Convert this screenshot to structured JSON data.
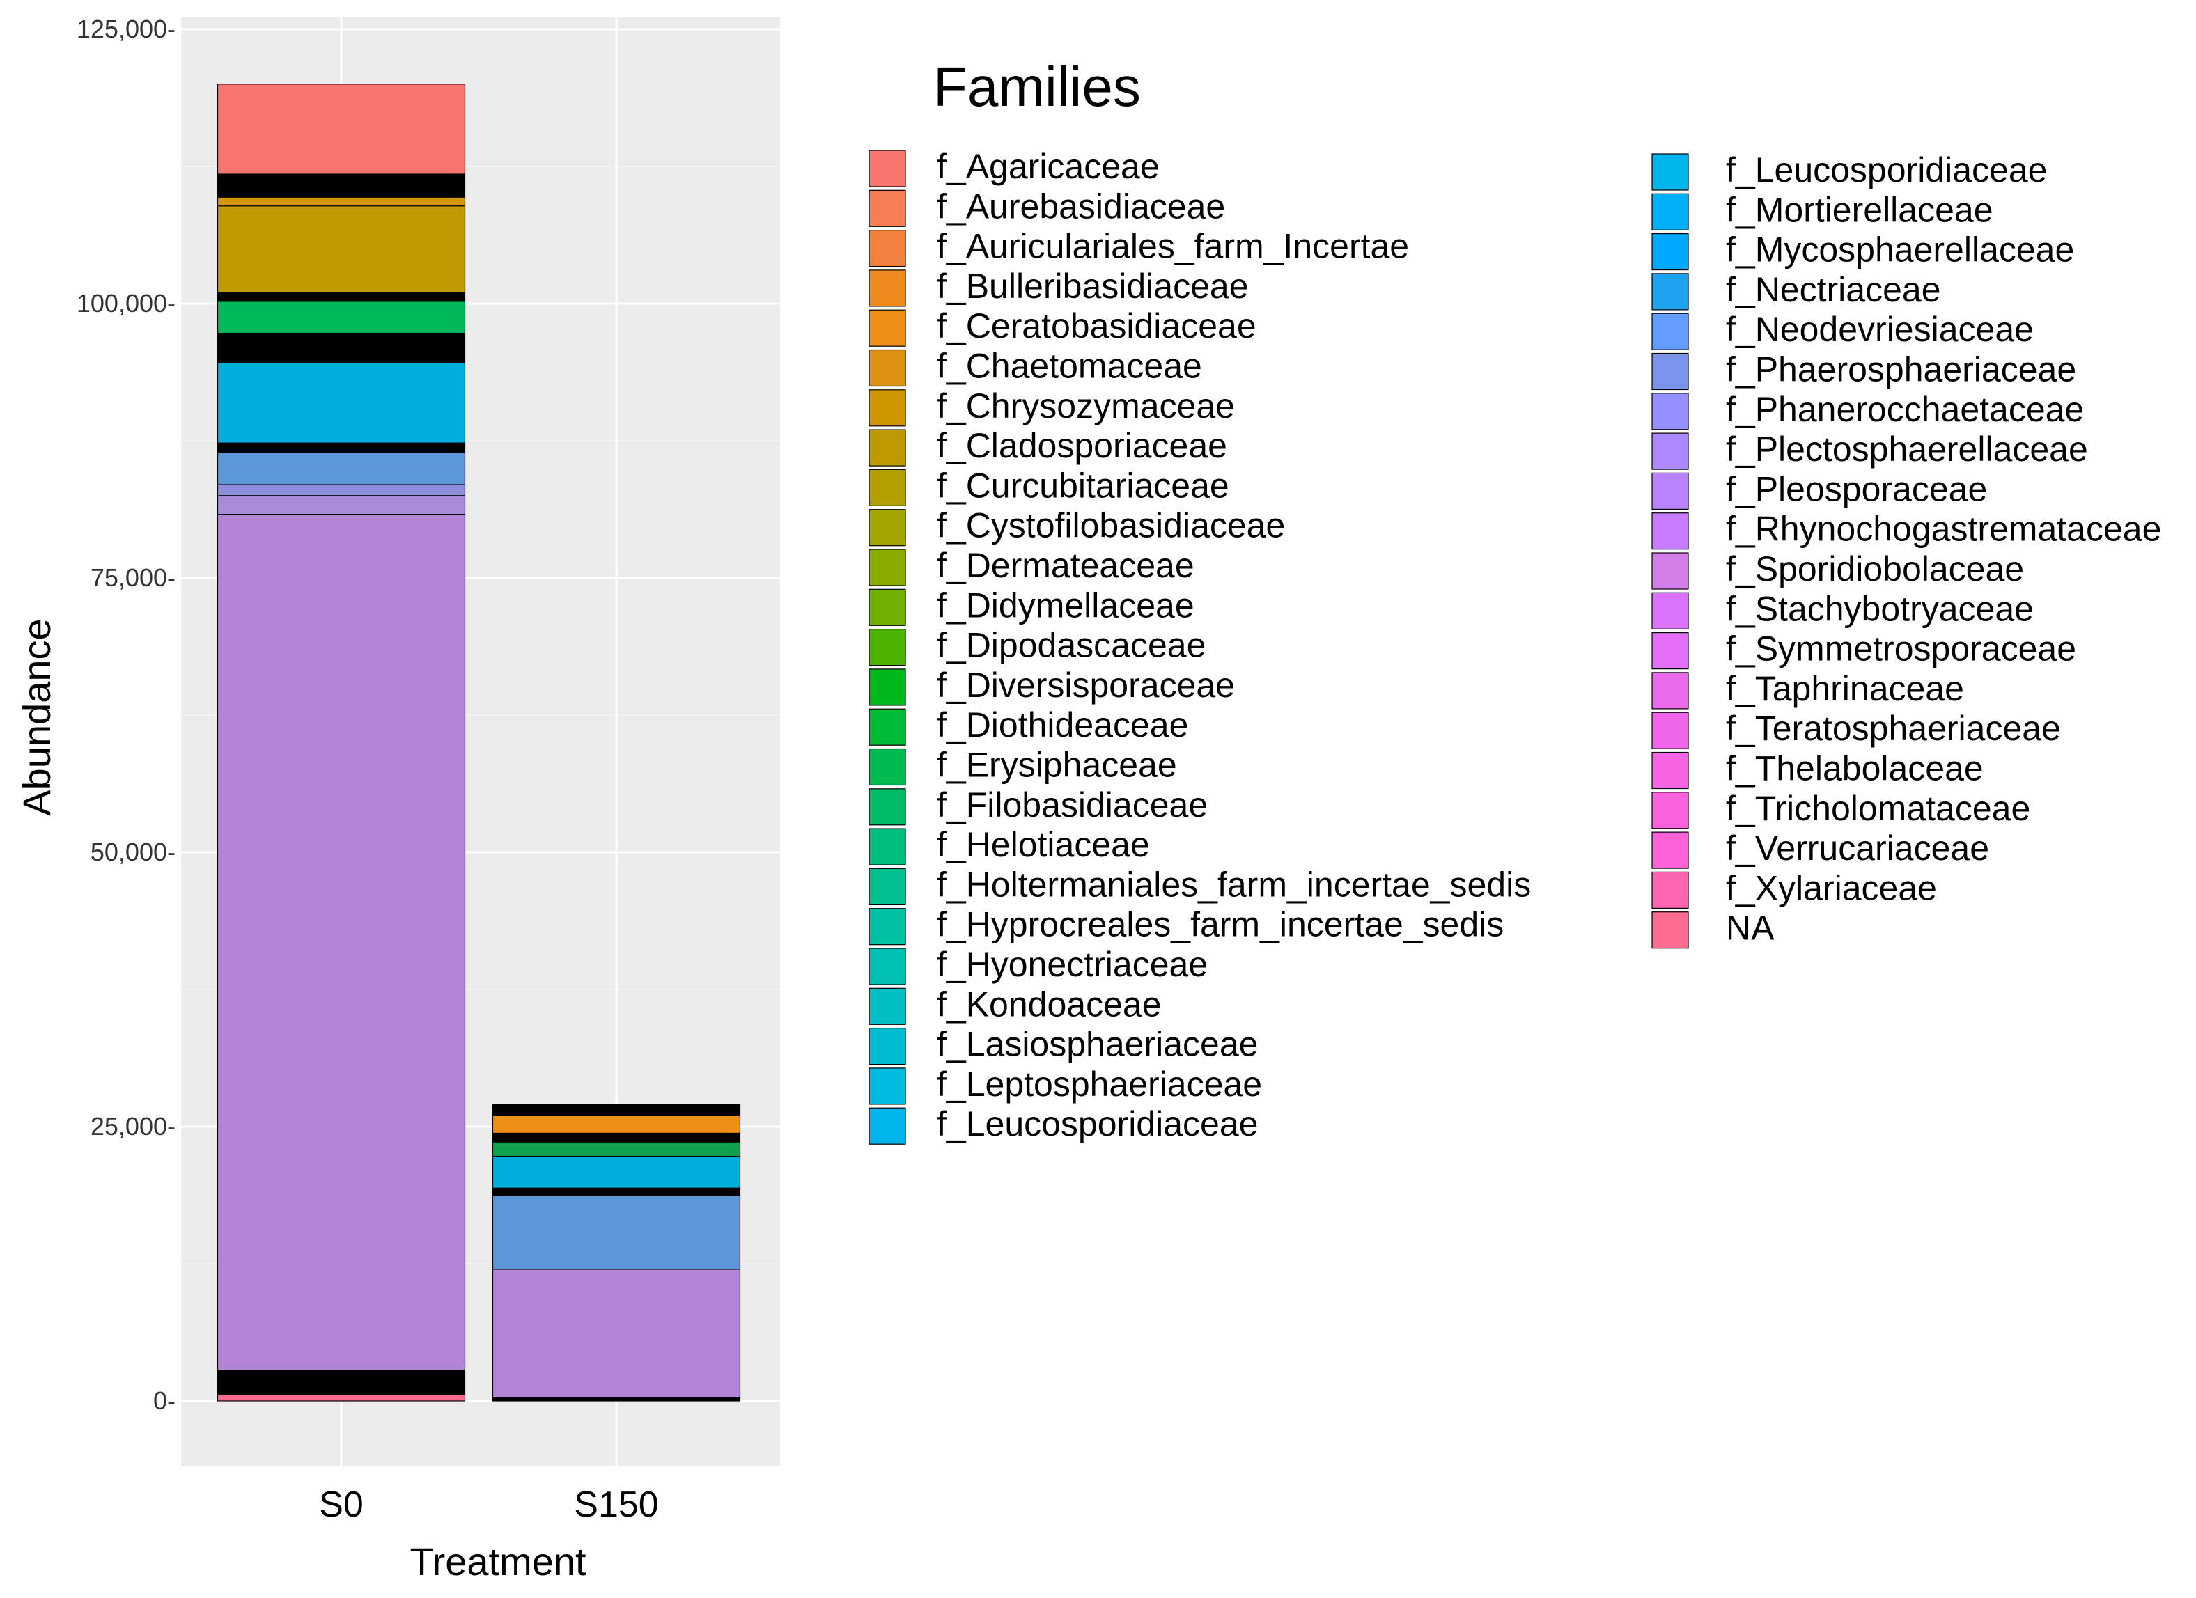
{
  "chart_data": {
    "type": "bar",
    "stacked": true,
    "title": "",
    "xlabel": "Treatment",
    "ylabel": "Abundance",
    "ylim": [
      -6500,
      125000
    ],
    "yticks": [
      0,
      25000,
      50000,
      75000,
      100000,
      125000
    ],
    "ytick_labels": [
      "0-",
      "25,000-",
      "50,000-",
      "75,000-",
      "100,000-",
      "125,000-"
    ],
    "categories": [
      "S0",
      "S150"
    ],
    "totals": [
      120000,
      27000
    ],
    "legend_title": "Families",
    "legend_position": "right",
    "families": [
      {
        "name": "f_Agaricaceae",
        "color": "#F8766D"
      },
      {
        "name": "f_Aurebasidiaceae",
        "color": "#F47E55"
      },
      {
        "name": "f_Auriculariales_farm_Incertae",
        "color": "#F0823E"
      },
      {
        "name": "f_Bulleribasidiaceae",
        "color": "#EF8B1E"
      },
      {
        "name": "f_Ceratobasidiaceae",
        "color": "#EE9018"
      },
      {
        "name": "f_Chaetomaceae",
        "color": "#DC9312"
      },
      {
        "name": "f_Chrysozymaceae",
        "color": "#CD9600"
      },
      {
        "name": "f_Cladosporiaceae",
        "color": "#BE9A00"
      },
      {
        "name": "f_Curcubitariaceae",
        "color": "#B3A000"
      },
      {
        "name": "f_Cystofilobasidiaceae",
        "color": "#A3A500"
      },
      {
        "name": "f_Dermateaceae",
        "color": "#8CAB00"
      },
      {
        "name": "f_Didymellaceae",
        "color": "#72B000"
      },
      {
        "name": "f_Dipodascaceae",
        "color": "#4BB400"
      },
      {
        "name": "f_Diversisporaceae",
        "color": "#00B81A"
      },
      {
        "name": "f_Diothideaceae",
        "color": "#00BA38"
      },
      {
        "name": "f_Erysiphaceae",
        "color": "#00BC4F"
      },
      {
        "name": "f_Filobasidiaceae",
        "color": "#00BE67"
      },
      {
        "name": "f_Helotiaceae",
        "color": "#00BF7D"
      },
      {
        "name": "f_Holtermaniales_farm_incertae_sedis",
        "color": "#00C08E"
      },
      {
        "name": "f_Hyprocreales_farm_incertae_sedis",
        "color": "#00C1A3"
      },
      {
        "name": "f_Hyonectriaceae",
        "color": "#00C0B2"
      },
      {
        "name": "f_Kondoaceae",
        "color": "#00BFC4"
      },
      {
        "name": "f_Lasiosphaeriaceae",
        "color": "#00BCD3"
      },
      {
        "name": "f_Leptosphaeriaceae",
        "color": "#00BAE0"
      },
      {
        "name": "f_Leucosporidiaceae",
        "color": "#00B5EC"
      },
      {
        "name": "f_Mortierellaceae",
        "color": "#00B0F6"
      },
      {
        "name": "f_Mycosphaerellaceae",
        "color": "#00A9FF"
      },
      {
        "name": "f_Nectriaceae",
        "color": "#1EA2F0"
      },
      {
        "name": "f_Neodevriesiaceae",
        "color": "#619CFF"
      },
      {
        "name": "f_Phaerosphaeriaceae",
        "color": "#7B93E8"
      },
      {
        "name": "f_Phanerocchaetaceae",
        "color": "#9590FF"
      },
      {
        "name": "f_Plectosphaerellaceae",
        "color": "#AC88FF"
      },
      {
        "name": "f_Pleosporaceae",
        "color": "#B983FF"
      },
      {
        "name": "f_Rhynochogastremataceae",
        "color": "#C77CFF"
      },
      {
        "name": "f_Sporidiobolaceae",
        "color": "#D37EE8"
      },
      {
        "name": "f_Stachybotryaceae",
        "color": "#DB72FB"
      },
      {
        "name": "f_Symmetrosporaceae",
        "color": "#E36EF6"
      },
      {
        "name": "f_Taphrinaceae",
        "color": "#EA6AE9"
      },
      {
        "name": "f_Teratosphaeriaceae",
        "color": "#F066EA"
      },
      {
        "name": "f_Thelabolaceae",
        "color": "#F564E3"
      },
      {
        "name": "f_Tricholomataceae",
        "color": "#F962DD"
      },
      {
        "name": "f_Verrucariaceae",
        "color": "#FC61D5"
      },
      {
        "name": "f_Xylariaceae",
        "color": "#FF64B0"
      },
      {
        "name": "NA",
        "color": "#FF6C91"
      }
    ],
    "legend_columns": [
      [
        "f_Agaricaceae",
        "f_Aurebasidiaceae",
        "f_Auriculariales_farm_Incertae",
        "f_Bulleribasidiaceae",
        "f_Ceratobasidiaceae",
        "f_Chaetomaceae",
        "f_Chrysozymaceae",
        "f_Cladosporiaceae",
        "f_Curcubitariaceae",
        "f_Cystofilobasidiaceae",
        "f_Dermateaceae",
        "f_Didymellaceae",
        "f_Dipodascaceae",
        "f_Diversisporaceae",
        "f_Diothideaceae",
        "f_Erysiphaceae",
        "f_Filobasidiaceae",
        "f_Helotiaceae",
        "f_Holtermaniales_farm_incertae_sedis",
        "f_Hyprocreales_farm_incertae_sedis",
        "f_Hyonectriaceae",
        "f_Kondoaceae",
        "f_Lasiosphaeriaceae",
        "f_Leptosphaeriaceae",
        "f_Leucosporidiaceae"
      ],
      [
        "f_Leucosporidiaceae",
        "f_Mortierellaceae",
        "f_Mycosphaerellaceae",
        "f_Nectriaceae",
        "f_Neodevriesiaceae",
        "f_Phaerosphaeriaceae",
        "f_Phanerocchaetaceae",
        "f_Plectosphaerellaceae",
        "f_Pleosporaceae",
        "f_Rhynochogastremataceae",
        "f_Sporidiobolaceae",
        "f_Stachybotryaceae",
        "f_Symmetrosporaceae",
        "f_Taphrinaceae",
        "f_Teratosphaeriaceae",
        "f_Thelabolaceae",
        "f_Tricholomataceae",
        "f_Verrucariaceae",
        "f_Xylariaceae",
        "NA"
      ]
    ],
    "series": [
      {
        "category": "S0",
        "segments": [
          {
            "family": "NA",
            "start": 0,
            "end": 600,
            "color": "#FF6C91"
          },
          {
            "family": "",
            "start": 600,
            "end": 2800,
            "color": "#000000"
          },
          {
            "family": "f_Pleosporaceae",
            "start": 2800,
            "end": 80800,
            "color": "#B383D9"
          },
          {
            "family": "f_Plectosphaerellaceae",
            "start": 80800,
            "end": 82500,
            "color": "#A98BDB"
          },
          {
            "family": "f_Phanerocchaetaceae",
            "start": 82500,
            "end": 83500,
            "color": "#8E8FDC"
          },
          {
            "family": "f_Neodevriesiaceae",
            "start": 83500,
            "end": 86400,
            "color": "#5B96D8"
          },
          {
            "family": "",
            "start": 86400,
            "end": 87300,
            "color": "#000000"
          },
          {
            "family": "f_Leucosporidiaceae",
            "start": 87300,
            "end": 94600,
            "color": "#00AEDC"
          },
          {
            "family": "",
            "start": 94600,
            "end": 97300,
            "color": "#000000"
          },
          {
            "family": "f_Erysiphaceae",
            "start": 97300,
            "end": 100200,
            "color": "#00B85A"
          },
          {
            "family": "",
            "start": 100200,
            "end": 101000,
            "color": "#000000"
          },
          {
            "family": "f_Cladosporiaceae",
            "start": 101000,
            "end": 108900,
            "color": "#BE9A00"
          },
          {
            "family": "f_Chaetomaceae",
            "start": 108900,
            "end": 109700,
            "color": "#D6950A"
          },
          {
            "family": "",
            "start": 109700,
            "end": 111800,
            "color": "#000000"
          },
          {
            "family": "f_Agaricaceae",
            "start": 111800,
            "end": 120000,
            "color": "#F8766D"
          }
        ]
      },
      {
        "category": "S150",
        "segments": [
          {
            "family": "",
            "start": 0,
            "end": 300,
            "color": "#000000"
          },
          {
            "family": "f_Pleosporaceae",
            "start": 300,
            "end": 12000,
            "color": "#B383D9"
          },
          {
            "family": "f_Neodevriesiaceae",
            "start": 12000,
            "end": 18700,
            "color": "#5B96D8"
          },
          {
            "family": "",
            "start": 18700,
            "end": 19400,
            "color": "#000000"
          },
          {
            "family": "f_Leucosporidiaceae",
            "start": 19400,
            "end": 22300,
            "color": "#00AEDC"
          },
          {
            "family": "f_Erysiphaceae",
            "start": 22300,
            "end": 23600,
            "color": "#0FA24C"
          },
          {
            "family": "",
            "start": 23600,
            "end": 24400,
            "color": "#000000"
          },
          {
            "family": "f_Ceratobasidiaceae",
            "start": 24400,
            "end": 26000,
            "color": "#EE9018"
          },
          {
            "family": "",
            "start": 26000,
            "end": 27000,
            "color": "#000000"
          }
        ]
      }
    ]
  }
}
